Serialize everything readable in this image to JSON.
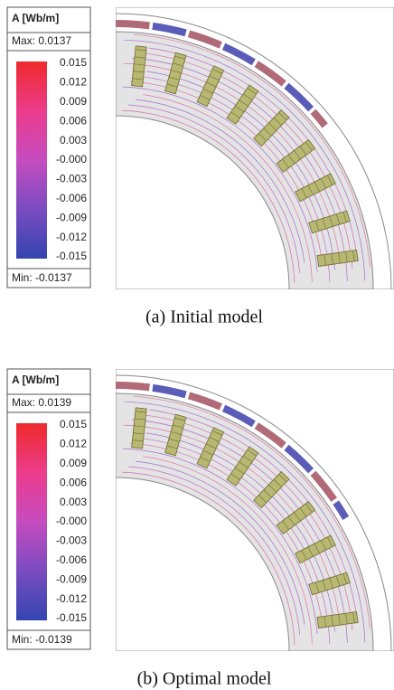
{
  "panels": [
    {
      "legend": {
        "title": "A [Wb/m]",
        "max": "Max: 0.0137",
        "min": "Min: -0.0137",
        "ticks": [
          "0.015",
          "0.012",
          "0.009",
          "0.006",
          "0.003",
          "-0.000",
          "-0.003",
          "-0.006",
          "-0.009",
          "-0.012",
          "-0.015"
        ]
      },
      "caption": "(a) Initial model"
    },
    {
      "legend": {
        "title": "A [Wb/m]",
        "max": "Max: 0.0139",
        "min": "Min: -0.0139",
        "ticks": [
          "0.015",
          "0.012",
          "0.009",
          "0.006",
          "0.003",
          "-0.000",
          "-0.003",
          "-0.006",
          "-0.009",
          "-0.012",
          "-0.015"
        ]
      },
      "caption": "(b) Optimal model"
    }
  ]
}
